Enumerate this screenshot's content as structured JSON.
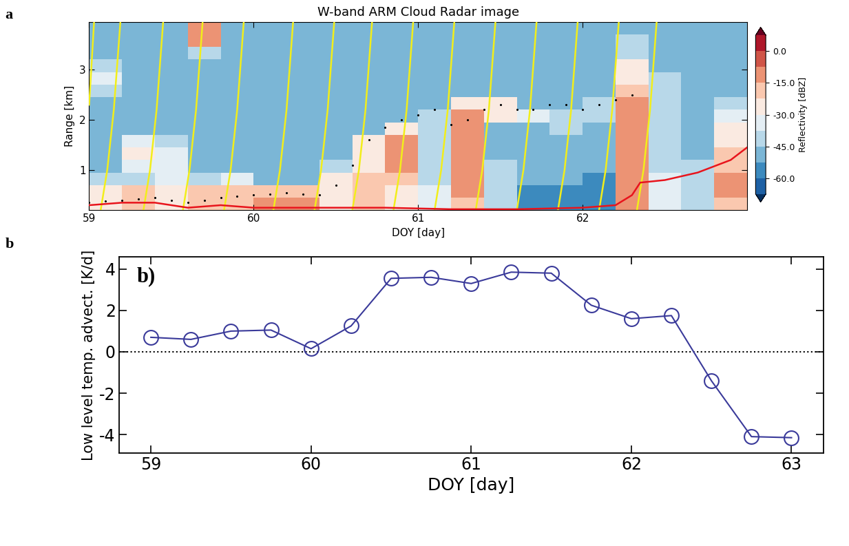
{
  "chart_data": [
    {
      "type": "heatmap",
      "panel_label": "a",
      "title": "W-band ARM Cloud Radar image",
      "x_label": "DOY [day]",
      "y_label": "Range [km]",
      "xlim": [
        59.0,
        63.0
      ],
      "ylim": [
        0.2,
        3.95
      ],
      "xticks": [
        59,
        60,
        61,
        62
      ],
      "yticks": [
        1,
        2,
        3
      ],
      "heatmap": {
        "x_edges": [
          59.0,
          59.2,
          59.4,
          59.6,
          59.8,
          60.0,
          60.2,
          60.4,
          60.6,
          60.8,
          61.0,
          61.2,
          61.4,
          61.6,
          61.8,
          62.0,
          62.2,
          62.4,
          62.6,
          62.8,
          63.0
        ],
        "y_edges": [
          0.2,
          0.45,
          0.7,
          0.95,
          1.2,
          1.45,
          1.7,
          1.95,
          2.2,
          2.45,
          2.7,
          2.95,
          3.2,
          3.45,
          3.7,
          3.95
        ],
        "columns": [
          [
            -25,
            -28,
            -45,
            -50,
            -50,
            -50,
            -50,
            -50,
            -50,
            -40,
            -35,
            -45,
            -48,
            -48,
            -48
          ],
          [
            -20,
            -22,
            -45,
            -35,
            -30,
            -35,
            -50,
            -50,
            -50,
            -50,
            -50,
            -50,
            -48,
            -48,
            -48
          ],
          [
            -25,
            -25,
            -35,
            -35,
            -35,
            -40,
            -50,
            -50,
            -50,
            -50,
            -50,
            -50,
            -50,
            -50,
            -50
          ],
          [
            -20,
            -22,
            -45,
            -50,
            -50,
            -50,
            -50,
            -50,
            -50,
            -50,
            -50,
            -50,
            -40,
            -15,
            -10
          ],
          [
            -20,
            -22,
            -35,
            -50,
            -50,
            -50,
            -50,
            -50,
            -50,
            -50,
            -50,
            -50,
            -50,
            -50,
            -50
          ],
          [
            -15,
            -18,
            -50,
            -52,
            -52,
            -52,
            -52,
            -52,
            -52,
            -52,
            -52,
            -52,
            -52,
            -52,
            -52
          ],
          [
            -15,
            -18,
            -50,
            -52,
            -52,
            -52,
            -52,
            -52,
            -52,
            -52,
            -52,
            -52,
            -52,
            -52,
            -52
          ],
          [
            -25,
            -25,
            -30,
            -40,
            -52,
            -52,
            -52,
            -52,
            -52,
            -52,
            -52,
            -52,
            -52,
            -52,
            -52
          ],
          [
            -20,
            -20,
            -22,
            -25,
            -25,
            -30,
            -52,
            -52,
            -52,
            -52,
            -52,
            -52,
            -52,
            -52,
            -52
          ],
          [
            -25,
            -25,
            -22,
            -10,
            -10,
            -12,
            -30,
            -52,
            -52,
            -52,
            -52,
            -52,
            -52,
            -52,
            -52
          ],
          [
            -35,
            -35,
            -38,
            -40,
            -40,
            -40,
            -38,
            -40,
            -52,
            -52,
            -52,
            -52,
            -52,
            -52,
            -52
          ],
          [
            -20,
            -15,
            -15,
            -12,
            -12,
            -10,
            -10,
            -15,
            -30,
            -52,
            -52,
            -52,
            -52,
            -52,
            -52
          ],
          [
            -45,
            -45,
            -45,
            -45,
            -52,
            -52,
            -52,
            -28,
            -28,
            -52,
            -52,
            -52,
            -52,
            -52,
            -52
          ],
          [
            -55,
            -55,
            -52,
            -52,
            -52,
            -52,
            -52,
            -35,
            -52,
            -52,
            -52,
            -52,
            -52,
            -52,
            -52
          ],
          [
            -58,
            -58,
            -52,
            -52,
            -52,
            -52,
            -40,
            -40,
            -52,
            -52,
            -52,
            -52,
            -52,
            -52,
            -52
          ],
          [
            -58,
            -58,
            -58,
            -52,
            -52,
            -52,
            -52,
            -40,
            -40,
            -52,
            -52,
            -52,
            -52,
            -52,
            -52
          ],
          [
            -15,
            -15,
            -12,
            -12,
            -10,
            -10,
            -12,
            -15,
            -15,
            -20,
            -25,
            -30,
            -38,
            -45,
            -52
          ],
          [
            -35,
            -35,
            -35,
            -38,
            -38,
            -40,
            -40,
            -40,
            -42,
            -45,
            -45,
            -52,
            -52,
            -52,
            -52
          ],
          [
            -40,
            -40,
            -42,
            -45,
            -52,
            -52,
            -52,
            -52,
            -52,
            -52,
            -52,
            -52,
            -52,
            -52,
            -52
          ],
          [
            -20,
            -15,
            -15,
            -18,
            -20,
            -25,
            -30,
            -35,
            -40,
            -52,
            -52,
            -52,
            -52,
            -52,
            -52
          ]
        ]
      },
      "colorbar": {
        "label": "Reflectivity [dBZ]",
        "range": [
          -67.5,
          7.5
        ],
        "ticks": [
          {
            "value": 0,
            "label": "0.0"
          },
          {
            "value": -15,
            "label": "-15.0"
          },
          {
            "value": -30,
            "label": "-30.0"
          },
          {
            "value": -45,
            "label": "-45.0"
          },
          {
            "value": -60,
            "label": "-60.0"
          }
        ]
      },
      "series": [
        {
          "type": "line",
          "color": "#f2ee1a",
          "line_style": "solid",
          "x": [
            59.0,
            59.03
          ],
          "y": [
            2.3,
            3.95
          ]
        },
        {
          "type": "line",
          "color": "#f2ee1a",
          "line_style": "solid",
          "x": [
            59.07,
            59.11,
            59.15,
            59.19
          ],
          "y": [
            0.2,
            1.0,
            2.2,
            3.95
          ]
        },
        {
          "type": "line",
          "color": "#f2ee1a",
          "line_style": "solid",
          "x": [
            59.33,
            59.37,
            59.41,
            59.45
          ],
          "y": [
            0.2,
            1.0,
            2.2,
            3.95
          ]
        },
        {
          "type": "line",
          "color": "#f2ee1a",
          "line_style": "solid",
          "x": [
            59.57,
            59.61,
            59.65,
            59.69
          ],
          "y": [
            0.2,
            1.0,
            2.2,
            3.95
          ]
        },
        {
          "type": "line",
          "color": "#f2ee1a",
          "line_style": "solid",
          "x": [
            59.82,
            59.86,
            59.9,
            59.94
          ],
          "y": [
            0.2,
            1.0,
            2.2,
            3.95
          ]
        },
        {
          "type": "line",
          "color": "#f2ee1a",
          "line_style": "solid",
          "x": [
            60.12,
            60.16,
            60.2,
            60.24
          ],
          "y": [
            0.2,
            1.0,
            2.2,
            3.95
          ]
        },
        {
          "type": "line",
          "color": "#f2ee1a",
          "line_style": "solid",
          "x": [
            60.37,
            60.41,
            60.45,
            60.49
          ],
          "y": [
            0.2,
            1.0,
            2.2,
            3.95
          ]
        },
        {
          "type": "line",
          "color": "#f2ee1a",
          "line_style": "solid",
          "x": [
            60.6,
            60.64,
            60.68,
            60.72
          ],
          "y": [
            0.2,
            1.0,
            2.2,
            3.95
          ]
        },
        {
          "type": "line",
          "color": "#f2ee1a",
          "line_style": "solid",
          "x": [
            60.85,
            60.89,
            60.93,
            60.97
          ],
          "y": [
            0.2,
            1.0,
            2.2,
            3.95
          ]
        },
        {
          "type": "line",
          "color": "#f2ee1a",
          "line_style": "solid",
          "x": [
            61.1,
            61.14,
            61.18,
            61.22
          ],
          "y": [
            0.2,
            1.0,
            2.2,
            3.95
          ]
        },
        {
          "type": "line",
          "color": "#f2ee1a",
          "line_style": "solid",
          "x": [
            61.35,
            61.39,
            61.43,
            61.47
          ],
          "y": [
            0.2,
            1.0,
            2.2,
            3.95
          ]
        },
        {
          "type": "line",
          "color": "#f2ee1a",
          "line_style": "solid",
          "x": [
            61.6,
            61.64,
            61.68,
            61.72
          ],
          "y": [
            0.2,
            1.0,
            2.2,
            3.95
          ]
        },
        {
          "type": "line",
          "color": "#f2ee1a",
          "line_style": "solid",
          "x": [
            61.85,
            61.89,
            61.93,
            61.97
          ],
          "y": [
            0.2,
            1.0,
            2.2,
            3.95
          ]
        },
        {
          "type": "line",
          "color": "#f2ee1a",
          "line_style": "solid",
          "x": [
            62.1,
            62.14,
            62.18,
            62.22
          ],
          "y": [
            0.2,
            1.0,
            2.2,
            3.95
          ]
        },
        {
          "type": "line",
          "color": "#f2ee1a",
          "line_style": "solid",
          "x": [
            62.33,
            62.37,
            62.41,
            62.45
          ],
          "y": [
            0.2,
            1.0,
            2.2,
            3.95
          ]
        },
        {
          "type": "scatter",
          "color": "#000000",
          "marker": "point",
          "x": [
            59.0,
            59.1,
            59.2,
            59.3,
            59.4,
            59.5,
            59.6,
            59.7,
            59.8,
            59.9,
            60.0,
            60.1,
            60.2,
            60.3,
            60.4,
            60.5,
            60.6,
            60.7,
            60.8,
            60.9,
            61.0,
            61.1,
            61.2,
            61.3,
            61.4,
            61.5,
            61.6,
            61.7,
            61.8,
            61.9,
            62.0,
            62.1,
            62.2,
            62.3
          ],
          "y": [
            0.35,
            0.38,
            0.4,
            0.42,
            0.45,
            0.4,
            0.35,
            0.4,
            0.45,
            0.48,
            0.5,
            0.52,
            0.55,
            0.52,
            0.5,
            0.7,
            1.1,
            1.6,
            1.85,
            2.0,
            2.1,
            2.2,
            1.9,
            2.0,
            2.2,
            2.3,
            2.2,
            2.2,
            2.3,
            2.3,
            2.2,
            2.3,
            2.4,
            2.5
          ]
        },
        {
          "type": "line",
          "color": "#e8141c",
          "line_style": "solid",
          "x": [
            59.0,
            59.2,
            59.4,
            59.6,
            59.8,
            60.0,
            60.4,
            60.8,
            61.2,
            61.6,
            62.0,
            62.2,
            62.3,
            62.35,
            62.5,
            62.7,
            62.9,
            63.0
          ],
          "y": [
            0.3,
            0.35,
            0.35,
            0.25,
            0.3,
            0.25,
            0.25,
            0.25,
            0.22,
            0.22,
            0.25,
            0.3,
            0.5,
            0.75,
            0.8,
            0.95,
            1.2,
            1.45
          ]
        }
      ]
    },
    {
      "type": "line",
      "panel_label": "b",
      "annotation": "b)",
      "x_label": "DOY [day]",
      "y_label": "Low level temp. advect. [K/d]",
      "xlim": [
        58.8,
        63.2
      ],
      "ylim": [
        -4.9,
        4.6
      ],
      "xticks": [
        59,
        60,
        61,
        62,
        63
      ],
      "yticks": [
        -4,
        -2,
        0,
        2,
        4
      ],
      "reference_line": 0,
      "color": "#3a3a9a",
      "marker": "circle",
      "line_style": "solid",
      "x": [
        59.0,
        59.25,
        59.5,
        59.75,
        60.0,
        60.25,
        60.5,
        60.75,
        61.0,
        61.25,
        61.5,
        61.75,
        62.0,
        62.25,
        62.5,
        62.75,
        63.0
      ],
      "values": [
        0.7,
        0.6,
        1.0,
        1.05,
        0.15,
        1.25,
        3.55,
        3.6,
        3.3,
        3.85,
        3.8,
        2.25,
        1.6,
        1.75,
        -1.4,
        -4.1,
        -4.15
      ]
    }
  ]
}
